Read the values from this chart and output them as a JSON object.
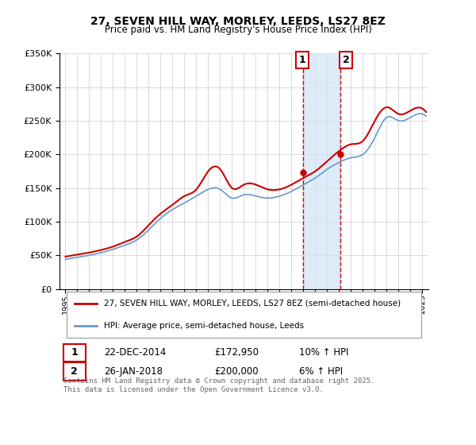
{
  "title": "27, SEVEN HILL WAY, MORLEY, LEEDS, LS27 8EZ",
  "subtitle": "Price paid vs. HM Land Registry's House Price Index (HPI)",
  "legend_line1": "27, SEVEN HILL WAY, MORLEY, LEEDS, LS27 8EZ (semi-detached house)",
  "legend_line2": "HPI: Average price, semi-detached house, Leeds",
  "transaction1_date": "22-DEC-2014",
  "transaction1_price": 172950,
  "transaction1_hpi": "10% ↑ HPI",
  "transaction1_label": "1",
  "transaction2_date": "26-JAN-2018",
  "transaction2_price": 200000,
  "transaction2_hpi": "6% ↑ HPI",
  "transaction2_label": "2",
  "footnote": "Contains HM Land Registry data © Crown copyright and database right 2025.\nThis data is licensed under the Open Government Licence v3.0.",
  "ylim": [
    0,
    350000
  ],
  "yticks": [
    0,
    50000,
    100000,
    150000,
    200000,
    250000,
    300000,
    350000
  ],
  "color_red": "#cc0000",
  "color_blue": "#6699cc",
  "color_shade": "#d0e4f7",
  "color_grid": "#cccccc",
  "background": "#ffffff"
}
